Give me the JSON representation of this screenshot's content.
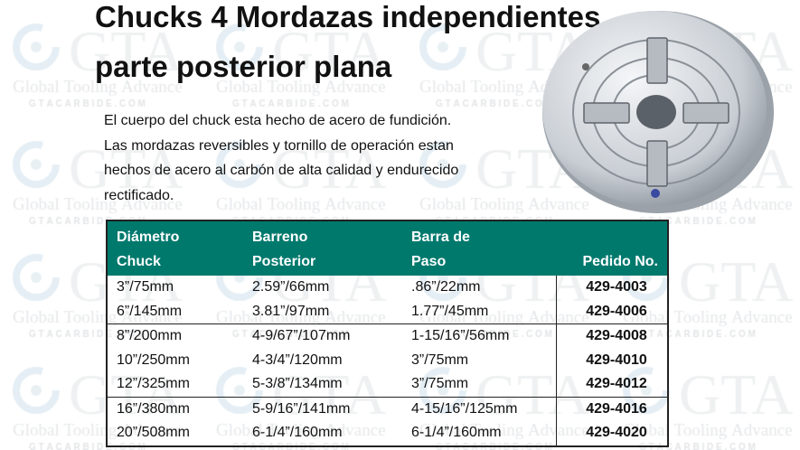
{
  "watermark": {
    "logo": "GTA",
    "line1": "Global Tooling Advance",
    "line2": "GTACARBIDE.COM"
  },
  "title": {
    "line1": "Chucks 4 Mordazas independientes",
    "line2": "parte posterior plana"
  },
  "description": [
    "El cuerpo del chuck esta hecho de acero de fundición.",
    "Las mordazas reversibles y tornillo de operación estan",
    "hechos de acero al carbón de alta calidad y endurecido",
    "rectificado."
  ],
  "table": {
    "header_color": "#00796d",
    "headers": [
      {
        "line1": "Diámetro",
        "line2": "Chuck"
      },
      {
        "line1": "Barreno",
        "line2": "Posterior"
      },
      {
        "line1": "Barra de",
        "line2": "Paso"
      },
      {
        "line1": "",
        "line2": "Pedido No."
      }
    ],
    "rows": [
      [
        "3”/75mm",
        "2.59”/66mm",
        ".86”/22mm",
        "429-4003"
      ],
      [
        "6”/145mm",
        "3.81”/97mm",
        "1.77”/45mm",
        "429-4006"
      ],
      [
        "8”/200mm",
        "4-9/67”/107mm",
        "1-15/16”/56mm",
        "429-4008"
      ],
      [
        "10”/250mm",
        "4-3/4”/120mm",
        "3”/75mm",
        "429-4010"
      ],
      [
        "12”/325mm",
        "5-3/8”/134mm",
        "3”/75mm",
        "429-4012"
      ],
      [
        "16”/380mm",
        "5-9/16”/141mm",
        "4-15/16”/125mm",
        "429-4016"
      ],
      [
        "20”/508mm",
        "6-1/4”/160mm",
        "6-1/4”/160mm",
        "429-4020"
      ]
    ]
  },
  "image": {
    "subject": "4-jaw independent chuck"
  }
}
